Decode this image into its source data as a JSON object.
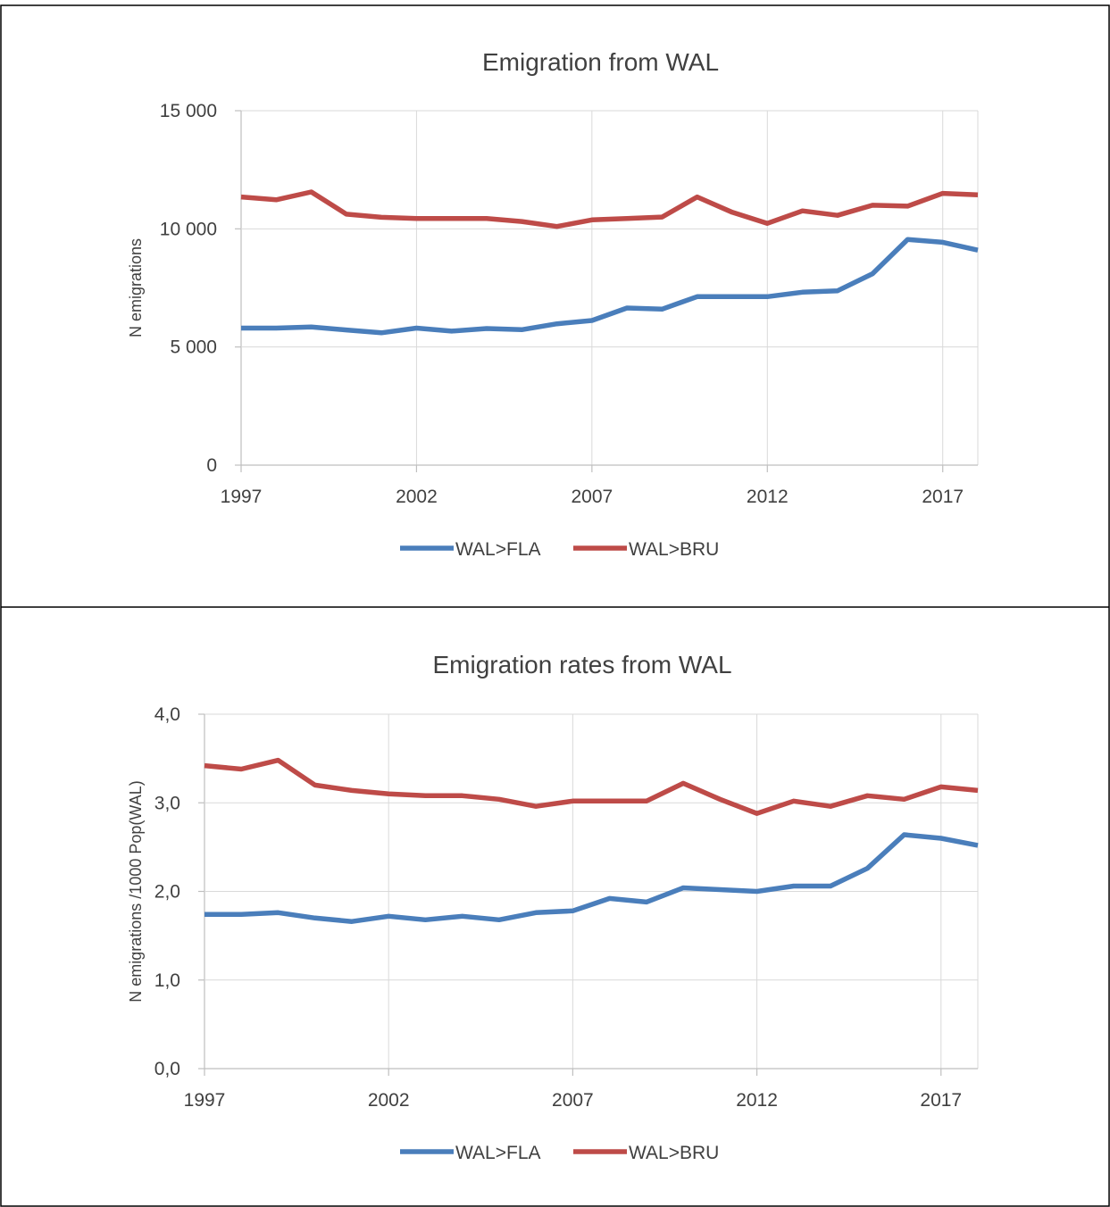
{
  "chart_data": [
    {
      "type": "line",
      "title": "Emigration from WAL",
      "xlabel": "",
      "ylabel": "N emigrations",
      "x": [
        1997,
        1998,
        1999,
        2000,
        2001,
        2002,
        2003,
        2004,
        2005,
        2006,
        2007,
        2008,
        2009,
        2010,
        2011,
        2012,
        2013,
        2014,
        2015,
        2016,
        2017,
        2018
      ],
      "xticks": [
        1997,
        2002,
        2007,
        2012,
        2017
      ],
      "xtick_labels": [
        "1997",
        "2002",
        "2007",
        "2012",
        "2017"
      ],
      "xlim": [
        1997,
        2018
      ],
      "ylim": [
        0,
        15000
      ],
      "yticks": [
        0,
        5000,
        10000,
        15000
      ],
      "ytick_labels": [
        "0",
        "5 000",
        "10 000",
        "15 000"
      ],
      "grid": "vertical",
      "legend_position": "bottom",
      "series": [
        {
          "name": "WAL>FLA",
          "color": "#4A7EBB",
          "values": [
            5800,
            5800,
            5850,
            5720,
            5600,
            5800,
            5670,
            5780,
            5730,
            5980,
            6120,
            6650,
            6600,
            7130,
            7130,
            7130,
            7320,
            7380,
            8100,
            9550,
            9430,
            9100
          ]
        },
        {
          "name": "WAL>BRU",
          "color": "#BE4B48",
          "values": [
            11350,
            11230,
            11560,
            10620,
            10490,
            10440,
            10440,
            10440,
            10310,
            10100,
            10380,
            10440,
            10500,
            11350,
            10700,
            10230,
            10760,
            10570,
            11000,
            10960,
            11500,
            11440
          ]
        }
      ]
    },
    {
      "type": "line",
      "title": "Emigration rates from WAL",
      "xlabel": "",
      "ylabel": "N emigrations /1000 Pop(WAL)",
      "x": [
        1997,
        1998,
        1999,
        2000,
        2001,
        2002,
        2003,
        2004,
        2005,
        2006,
        2007,
        2008,
        2009,
        2010,
        2011,
        2012,
        2013,
        2014,
        2015,
        2016,
        2017,
        2018
      ],
      "xticks": [
        1997,
        2002,
        2007,
        2012,
        2017
      ],
      "xtick_labels": [
        "1997",
        "2002",
        "2007",
        "2012",
        "2017"
      ],
      "xlim": [
        1997,
        2018
      ],
      "ylim": [
        0,
        4
      ],
      "yticks": [
        0,
        1,
        2,
        3,
        4
      ],
      "ytick_labels": [
        "0,0",
        "1,0",
        "2,0",
        "3,0",
        "4,0"
      ],
      "grid": "vertical",
      "legend_position": "bottom",
      "series": [
        {
          "name": "WAL>FLA",
          "color": "#4A7EBB",
          "values": [
            1.74,
            1.74,
            1.76,
            1.7,
            1.66,
            1.72,
            1.68,
            1.72,
            1.68,
            1.76,
            1.78,
            1.92,
            1.88,
            2.04,
            2.02,
            2.0,
            2.06,
            2.06,
            2.26,
            2.64,
            2.6,
            2.52
          ]
        },
        {
          "name": "WAL>BRU",
          "color": "#BE4B48",
          "values": [
            3.42,
            3.38,
            3.48,
            3.2,
            3.14,
            3.1,
            3.08,
            3.08,
            3.04,
            2.96,
            3.02,
            3.02,
            3.02,
            3.22,
            3.04,
            2.88,
            3.02,
            2.96,
            3.08,
            3.04,
            3.18,
            3.14
          ]
        }
      ]
    }
  ]
}
